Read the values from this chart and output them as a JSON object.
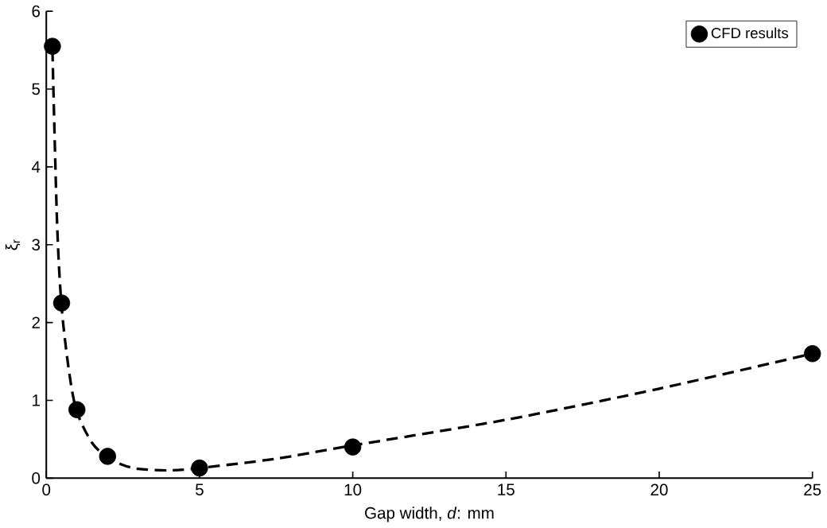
{
  "chart_data": {
    "type": "scatter",
    "xlabel": "Gap width, *d*: mm",
    "ylabel": "ξ$_{r}$",
    "xlim": [
      0,
      25
    ],
    "ylim": [
      0,
      6
    ],
    "xticks": [
      0,
      5,
      10,
      15,
      20,
      25
    ],
    "yticks": [
      0,
      1,
      2,
      3,
      4,
      5,
      6
    ],
    "legend": "top right",
    "series": [
      {
        "name": "CFD results",
        "marker": "circle",
        "color": "#000000",
        "x": [
          0.2,
          0.5,
          1,
          2,
          5,
          10,
          25
        ],
        "values": [
          5.55,
          2.25,
          0.88,
          0.28,
          0.13,
          0.4,
          1.6
        ]
      },
      {
        "type": "line",
        "line_style": "dashed",
        "marker": "none",
        "color": "#000000",
        "x": [
          0.2,
          0.35,
          0.5,
          0.75,
          1,
          1.5,
          2,
          2.5,
          3,
          4,
          5,
          7.5,
          10,
          15,
          20,
          25
        ],
        "values": [
          5.5,
          3.3,
          2.2,
          1.35,
          0.85,
          0.45,
          0.27,
          0.17,
          0.12,
          0.1,
          0.13,
          0.25,
          0.42,
          0.75,
          1.15,
          1.6
        ]
      }
    ]
  }
}
